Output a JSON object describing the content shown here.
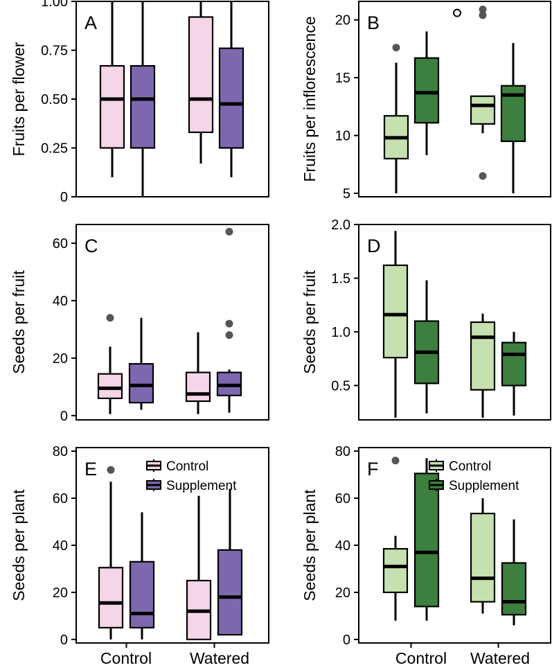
{
  "colors": {
    "pink": "#f5d5e8",
    "purple": "#7d68b0",
    "light_green": "#c7e0af",
    "dark_green": "#3c7f3e",
    "outlier": "#555555"
  },
  "chart_data": [
    {
      "id": "A",
      "type": "box",
      "panel_label": "A",
      "ylabel": "Fruits per flower",
      "ylim": [
        0,
        1.0
      ],
      "yticks": [
        "0",
        "0.25",
        "0.50",
        "0.75",
        "1.00"
      ],
      "ytick_values": [
        0,
        0.25,
        0.5,
        0.75,
        1.0
      ],
      "categories": [
        "Control",
        "Watered"
      ],
      "palette": "purple",
      "series": [
        {
          "name": "Control",
          "color": "pink",
          "boxes": [
            {
              "category": "Control",
              "min": 0.1,
              "q1": 0.25,
              "median": 0.5,
              "q3": 0.67,
              "max": 1.0,
              "outliers": []
            },
            {
              "category": "Watered",
              "min": 0.17,
              "q1": 0.33,
              "median": 0.5,
              "q3": 0.92,
              "max": 1.0,
              "outliers": []
            }
          ]
        },
        {
          "name": "Supplement",
          "color": "purple",
          "boxes": [
            {
              "category": "Control",
              "min": 0.0,
              "q1": 0.25,
              "median": 0.5,
              "q3": 0.67,
              "max": 1.0,
              "outliers": []
            },
            {
              "category": "Watered",
              "min": 0.1,
              "q1": 0.25,
              "median": 0.475,
              "q3": 0.76,
              "max": 1.0,
              "outliers": []
            }
          ]
        }
      ]
    },
    {
      "id": "B",
      "type": "box",
      "panel_label": "B",
      "ylabel": "Fruits per inflorescence",
      "ylim": [
        4.7,
        21.6
      ],
      "yticks": [
        "5",
        "10",
        "15",
        "20"
      ],
      "ytick_values": [
        5,
        10,
        15,
        20
      ],
      "categories": [
        "Control",
        "Watered"
      ],
      "palette": "green",
      "series": [
        {
          "name": "Control",
          "color": "light_green",
          "boxes": [
            {
              "category": "Control",
              "min": 5.0,
              "q1": 8.0,
              "median": 9.8,
              "q3": 11.7,
              "max": 16.3,
              "outliers": [
                17.6
              ]
            },
            {
              "category": "Watered",
              "min": 10.2,
              "q1": 11.0,
              "median": 12.6,
              "q3": 13.4,
              "max": 13.4,
              "outliers": [
                6.5,
                20.4,
                20.9
              ]
            }
          ]
        },
        {
          "name": "Supplement",
          "color": "dark_green",
          "boxes": [
            {
              "category": "Control",
              "min": 8.3,
              "q1": 11.1,
              "median": 13.7,
              "q3": 16.7,
              "max": 19.0,
              "outliers": []
            },
            {
              "category": "Watered",
              "min": 5.0,
              "q1": 9.5,
              "median": 13.5,
              "q3": 14.3,
              "max": 18.0,
              "outliers": []
            }
          ]
        }
      ],
      "hollow_points": [
        {
          "category": "Control",
          "position": "right-gap",
          "value": 20.6
        }
      ]
    },
    {
      "id": "C",
      "type": "box",
      "panel_label": "C",
      "ylabel": "Seeds per fruit",
      "ylim": [
        -1.5,
        66.5
      ],
      "yticks": [
        "0",
        "20",
        "40",
        "60"
      ],
      "ytick_values": [
        0,
        20,
        40,
        60
      ],
      "categories": [
        "Control",
        "Watered"
      ],
      "palette": "purple",
      "series": [
        {
          "name": "Control",
          "color": "pink",
          "boxes": [
            {
              "category": "Control",
              "min": 0.5,
              "q1": 6.0,
              "median": 9.5,
              "q3": 14.5,
              "max": 24.0,
              "outliers": [
                34.0
              ]
            },
            {
              "category": "Watered",
              "min": 0.5,
              "q1": 5.0,
              "median": 7.5,
              "q3": 15.0,
              "max": 29.0,
              "outliers": []
            }
          ]
        },
        {
          "name": "Supplement",
          "color": "purple",
          "boxes": [
            {
              "category": "Control",
              "min": 2.0,
              "q1": 4.5,
              "median": 10.5,
              "q3": 18.0,
              "max": 34.0,
              "outliers": []
            },
            {
              "category": "Watered",
              "min": 1.0,
              "q1": 7.0,
              "median": 10.5,
              "q3": 15.0,
              "max": 16.0,
              "outliers": [
                28.0,
                32.0,
                64.0
              ]
            }
          ]
        }
      ]
    },
    {
      "id": "D",
      "type": "box",
      "panel_label": "D",
      "ylabel": "Seeds per fruit",
      "ylim": [
        0.18,
        2.0
      ],
      "yticks": [
        "0.5",
        "1.0",
        "1.5",
        "2.0"
      ],
      "ytick_values": [
        0.5,
        1.0,
        1.5,
        2.0
      ],
      "categories": [
        "Control",
        "Watered"
      ],
      "palette": "green",
      "series": [
        {
          "name": "Control",
          "color": "light_green",
          "boxes": [
            {
              "category": "Control",
              "min": 0.2,
              "q1": 0.76,
              "median": 1.16,
              "q3": 1.62,
              "max": 1.94,
              "outliers": []
            },
            {
              "category": "Watered",
              "min": 0.2,
              "q1": 0.46,
              "median": 0.95,
              "q3": 1.09,
              "max": 1.17,
              "outliers": []
            }
          ]
        },
        {
          "name": "Supplement",
          "color": "dark_green",
          "boxes": [
            {
              "category": "Control",
              "min": 0.24,
              "q1": 0.52,
              "median": 0.81,
              "q3": 1.1,
              "max": 1.48,
              "outliers": []
            },
            {
              "category": "Watered",
              "min": 0.22,
              "q1": 0.5,
              "median": 0.79,
              "q3": 0.9,
              "max": 1.0,
              "outliers": []
            }
          ]
        }
      ]
    },
    {
      "id": "E",
      "type": "box",
      "panel_label": "E",
      "ylabel": "Seeds per plant",
      "ylim": [
        -1.5,
        81.5
      ],
      "yticks": [
        "0",
        "20",
        "40",
        "60",
        "80"
      ],
      "ytick_values": [
        0,
        20,
        40,
        60,
        80
      ],
      "categories": [
        "Control",
        "Watered"
      ],
      "palette": "purple",
      "legend": {
        "entries": [
          "Control",
          "Supplement"
        ],
        "position": "top-right"
      },
      "series": [
        {
          "name": "Control",
          "color": "pink",
          "boxes": [
            {
              "category": "Control",
              "min": 0.0,
              "q1": 5.0,
              "median": 15.5,
              "q3": 30.5,
              "max": 67.0,
              "outliers": [
                72.0
              ]
            },
            {
              "category": "Watered",
              "min": 0.0,
              "q1": 0.0,
              "median": 12.0,
              "q3": 25.0,
              "max": 61.0,
              "outliers": []
            }
          ]
        },
        {
          "name": "Supplement",
          "color": "purple",
          "boxes": [
            {
              "category": "Control",
              "min": 0.0,
              "q1": 5.0,
              "median": 11.0,
              "q3": 33.0,
              "max": 54.0,
              "outliers": []
            },
            {
              "category": "Watered",
              "min": 2.0,
              "q1": 2.0,
              "median": 18.0,
              "q3": 38.0,
              "max": 64.0,
              "outliers": []
            }
          ]
        }
      ]
    },
    {
      "id": "F",
      "type": "box",
      "panel_label": "F",
      "ylabel": "Seeds per plant",
      "ylim": [
        -1.5,
        81.5
      ],
      "yticks": [
        "0",
        "20",
        "40",
        "60",
        "80"
      ],
      "ytick_values": [
        0,
        20,
        40,
        60,
        80
      ],
      "categories": [
        "Control",
        "Watered"
      ],
      "palette": "green",
      "legend": {
        "entries": [
          "Control",
          "Supplement"
        ],
        "position": "top-right"
      },
      "series": [
        {
          "name": "Control",
          "color": "light_green",
          "boxes": [
            {
              "category": "Control",
              "min": 8.0,
              "q1": 20.0,
              "median": 31.0,
              "q3": 38.5,
              "max": 44.0,
              "outliers": [
                76.0
              ]
            },
            {
              "category": "Watered",
              "min": 11.0,
              "q1": 16.0,
              "median": 26.0,
              "q3": 53.5,
              "max": 60.0,
              "outliers": []
            }
          ]
        },
        {
          "name": "Supplement",
          "color": "dark_green",
          "boxes": [
            {
              "category": "Control",
              "min": 8.0,
              "q1": 14.0,
              "median": 37.0,
              "q3": 70.5,
              "max": 77.0,
              "outliers": []
            },
            {
              "category": "Watered",
              "min": 6.0,
              "q1": 10.5,
              "median": 16.0,
              "q3": 32.5,
              "max": 51.0,
              "outliers": []
            }
          ]
        }
      ]
    }
  ],
  "x_axis": {
    "labels": [
      "Control",
      "Watered"
    ]
  }
}
